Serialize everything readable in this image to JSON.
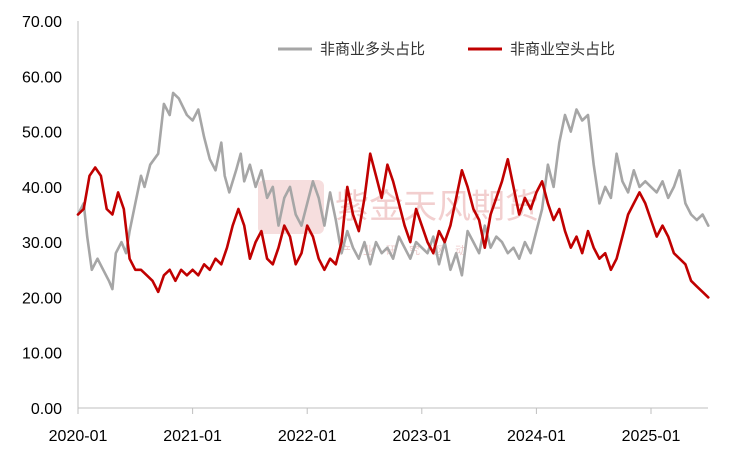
{
  "chart_data": {
    "type": "line",
    "title": "",
    "xlabel": "",
    "ylabel": "",
    "ylim": [
      0,
      70
    ],
    "y_ticks": [
      "0.00",
      "10.00",
      "20.00",
      "30.00",
      "40.00",
      "50.00",
      "60.00",
      "70.00"
    ],
    "x_ticks": [
      "2020-01",
      "2021-01",
      "2022-01",
      "2023-01",
      "2024-01",
      "2025-01"
    ],
    "grid": false,
    "legend_placement": "top",
    "series": [
      {
        "name": "非商业多头占比",
        "color": "#a6a6a6",
        "points": [
          [
            0,
            35
          ],
          [
            0.05,
            37
          ],
          [
            0.08,
            31
          ],
          [
            0.12,
            25
          ],
          [
            0.17,
            27
          ],
          [
            0.22,
            25
          ],
          [
            0.27,
            23
          ],
          [
            0.3,
            21.5
          ],
          [
            0.33,
            28
          ],
          [
            0.38,
            30
          ],
          [
            0.42,
            28
          ],
          [
            0.45,
            32
          ],
          [
            0.5,
            37
          ],
          [
            0.55,
            42
          ],
          [
            0.58,
            40
          ],
          [
            0.63,
            44
          ],
          [
            0.7,
            46
          ],
          [
            0.75,
            55
          ],
          [
            0.8,
            53
          ],
          [
            0.83,
            57
          ],
          [
            0.88,
            56
          ],
          [
            0.95,
            53
          ],
          [
            1.0,
            52
          ],
          [
            1.05,
            54
          ],
          [
            1.1,
            49
          ],
          [
            1.15,
            45
          ],
          [
            1.2,
            43
          ],
          [
            1.25,
            48
          ],
          [
            1.28,
            42
          ],
          [
            1.32,
            39
          ],
          [
            1.38,
            43
          ],
          [
            1.42,
            46
          ],
          [
            1.45,
            41
          ],
          [
            1.5,
            44
          ],
          [
            1.55,
            40
          ],
          [
            1.6,
            43
          ],
          [
            1.65,
            38
          ],
          [
            1.7,
            40
          ],
          [
            1.75,
            33
          ],
          [
            1.8,
            38
          ],
          [
            1.85,
            40
          ],
          [
            1.9,
            35
          ],
          [
            1.95,
            33
          ],
          [
            2.0,
            37
          ],
          [
            2.05,
            41
          ],
          [
            2.1,
            38
          ],
          [
            2.15,
            33
          ],
          [
            2.2,
            39
          ],
          [
            2.25,
            34
          ],
          [
            2.3,
            28
          ],
          [
            2.35,
            32
          ],
          [
            2.4,
            29
          ],
          [
            2.45,
            27
          ],
          [
            2.5,
            30
          ],
          [
            2.55,
            26
          ],
          [
            2.6,
            30
          ],
          [
            2.65,
            28
          ],
          [
            2.7,
            29
          ],
          [
            2.75,
            27
          ],
          [
            2.8,
            31
          ],
          [
            2.85,
            29
          ],
          [
            2.9,
            27
          ],
          [
            2.95,
            30
          ],
          [
            3.0,
            29
          ],
          [
            3.05,
            28
          ],
          [
            3.1,
            31
          ],
          [
            3.15,
            26
          ],
          [
            3.2,
            30
          ],
          [
            3.25,
            25
          ],
          [
            3.3,
            28
          ],
          [
            3.35,
            24
          ],
          [
            3.4,
            32
          ],
          [
            3.45,
            30
          ],
          [
            3.5,
            28
          ],
          [
            3.55,
            33
          ],
          [
            3.6,
            29
          ],
          [
            3.65,
            31
          ],
          [
            3.7,
            30
          ],
          [
            3.75,
            28
          ],
          [
            3.8,
            29
          ],
          [
            3.85,
            27
          ],
          [
            3.9,
            30
          ],
          [
            3.95,
            28
          ],
          [
            4.0,
            32
          ],
          [
            4.05,
            36
          ],
          [
            4.1,
            44
          ],
          [
            4.15,
            40
          ],
          [
            4.2,
            48
          ],
          [
            4.25,
            53
          ],
          [
            4.3,
            50
          ],
          [
            4.35,
            54
          ],
          [
            4.4,
            52
          ],
          [
            4.45,
            53
          ],
          [
            4.5,
            44
          ],
          [
            4.55,
            37
          ],
          [
            4.6,
            40
          ],
          [
            4.65,
            38
          ],
          [
            4.7,
            46
          ],
          [
            4.75,
            41
          ],
          [
            4.8,
            39
          ],
          [
            4.85,
            43
          ],
          [
            4.9,
            40
          ],
          [
            4.95,
            41
          ],
          [
            5.0,
            40
          ],
          [
            5.05,
            39
          ],
          [
            5.1,
            41
          ],
          [
            5.15,
            38
          ],
          [
            5.2,
            40
          ],
          [
            5.25,
            43
          ],
          [
            5.3,
            37
          ],
          [
            5.35,
            35
          ],
          [
            5.4,
            34
          ],
          [
            5.45,
            35
          ],
          [
            5.5,
            33
          ]
        ]
      },
      {
        "name": "非商业空头占比",
        "color": "#c00000",
        "points": [
          [
            0,
            35
          ],
          [
            0.05,
            36
          ],
          [
            0.1,
            42
          ],
          [
            0.15,
            43.5
          ],
          [
            0.2,
            42
          ],
          [
            0.25,
            36
          ],
          [
            0.3,
            35
          ],
          [
            0.35,
            39
          ],
          [
            0.4,
            36
          ],
          [
            0.45,
            27
          ],
          [
            0.5,
            25
          ],
          [
            0.55,
            25
          ],
          [
            0.6,
            24
          ],
          [
            0.65,
            23
          ],
          [
            0.7,
            21
          ],
          [
            0.75,
            24
          ],
          [
            0.8,
            25
          ],
          [
            0.85,
            23
          ],
          [
            0.9,
            25
          ],
          [
            0.95,
            24
          ],
          [
            1.0,
            25
          ],
          [
            1.05,
            24
          ],
          [
            1.1,
            26
          ],
          [
            1.15,
            25
          ],
          [
            1.2,
            27
          ],
          [
            1.25,
            26
          ],
          [
            1.3,
            29
          ],
          [
            1.35,
            33
          ],
          [
            1.4,
            36
          ],
          [
            1.45,
            33
          ],
          [
            1.5,
            27
          ],
          [
            1.55,
            30
          ],
          [
            1.6,
            32
          ],
          [
            1.65,
            27
          ],
          [
            1.7,
            26
          ],
          [
            1.75,
            29
          ],
          [
            1.8,
            33
          ],
          [
            1.85,
            31
          ],
          [
            1.9,
            26
          ],
          [
            1.95,
            28
          ],
          [
            2.0,
            33
          ],
          [
            2.05,
            31
          ],
          [
            2.1,
            27
          ],
          [
            2.15,
            25
          ],
          [
            2.2,
            27
          ],
          [
            2.25,
            26
          ],
          [
            2.3,
            30
          ],
          [
            2.35,
            40
          ],
          [
            2.4,
            35
          ],
          [
            2.45,
            32
          ],
          [
            2.5,
            38
          ],
          [
            2.55,
            46
          ],
          [
            2.6,
            42
          ],
          [
            2.65,
            38
          ],
          [
            2.7,
            44
          ],
          [
            2.75,
            41
          ],
          [
            2.8,
            37
          ],
          [
            2.85,
            33
          ],
          [
            2.9,
            30
          ],
          [
            2.95,
            36
          ],
          [
            3.0,
            33
          ],
          [
            3.05,
            30
          ],
          [
            3.1,
            28
          ],
          [
            3.15,
            32
          ],
          [
            3.2,
            30
          ],
          [
            3.25,
            33
          ],
          [
            3.3,
            38
          ],
          [
            3.35,
            43
          ],
          [
            3.4,
            40
          ],
          [
            3.45,
            36
          ],
          [
            3.5,
            34
          ],
          [
            3.55,
            29
          ],
          [
            3.6,
            35
          ],
          [
            3.65,
            38
          ],
          [
            3.7,
            41
          ],
          [
            3.75,
            45
          ],
          [
            3.8,
            40
          ],
          [
            3.85,
            35
          ],
          [
            3.9,
            38
          ],
          [
            3.95,
            36
          ],
          [
            4.0,
            39
          ],
          [
            4.05,
            41
          ],
          [
            4.1,
            37
          ],
          [
            4.15,
            34
          ],
          [
            4.2,
            36
          ],
          [
            4.25,
            32
          ],
          [
            4.3,
            29
          ],
          [
            4.35,
            31
          ],
          [
            4.4,
            28
          ],
          [
            4.45,
            32
          ],
          [
            4.5,
            29
          ],
          [
            4.55,
            27
          ],
          [
            4.6,
            28
          ],
          [
            4.65,
            25
          ],
          [
            4.7,
            27
          ],
          [
            4.75,
            31
          ],
          [
            4.8,
            35
          ],
          [
            4.85,
            37
          ],
          [
            4.9,
            39
          ],
          [
            4.95,
            37
          ],
          [
            5.0,
            34
          ],
          [
            5.05,
            31
          ],
          [
            5.1,
            33
          ],
          [
            5.15,
            31
          ],
          [
            5.2,
            28
          ],
          [
            5.25,
            27
          ],
          [
            5.3,
            26
          ],
          [
            5.35,
            23
          ],
          [
            5.4,
            22
          ],
          [
            5.45,
            21
          ],
          [
            5.5,
            20
          ]
        ]
      }
    ]
  }
}
